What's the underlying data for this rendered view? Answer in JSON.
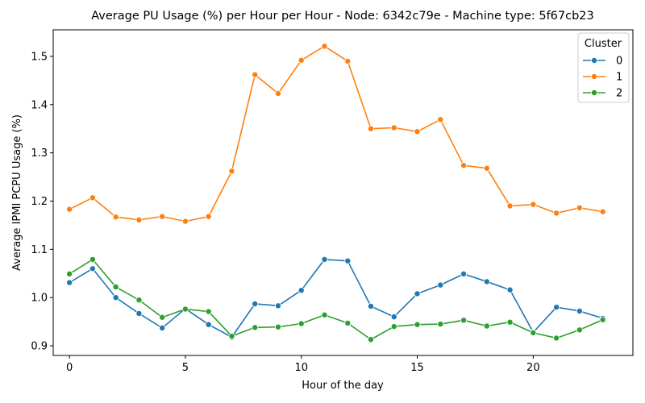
{
  "chart_data": {
    "type": "line",
    "title": "Average PU Usage (%) per Hour per Hour - Node: 6342c79e - Machine type: 5f67cb23",
    "xlabel": "Hour of the day",
    "ylabel": "Average IPMI PCPU Usage (%)",
    "x": [
      0,
      1,
      2,
      3,
      4,
      5,
      6,
      7,
      8,
      9,
      10,
      11,
      12,
      13,
      14,
      15,
      16,
      17,
      18,
      19,
      20,
      21,
      22,
      23
    ],
    "xlim": [
      -0.7,
      24.3
    ],
    "ylim": [
      0.88,
      1.555
    ],
    "xticks": [
      0,
      5,
      10,
      15,
      20
    ],
    "xtick_labels": [
      "0",
      "5",
      "10",
      "15",
      "20"
    ],
    "yticks": [
      0.9,
      1.0,
      1.1,
      1.2,
      1.3,
      1.4,
      1.5
    ],
    "ytick_labels": [
      "0.9",
      "1.0",
      "1.1",
      "1.2",
      "1.3",
      "1.4",
      "1.5"
    ],
    "grid": false,
    "legend": {
      "title": "Cluster",
      "placement": "top-right"
    },
    "series": [
      {
        "name": "0",
        "color": "#1f77b4",
        "values": [
          1.031,
          1.06,
          1.0,
          0.967,
          0.937,
          0.977,
          0.944,
          0.918,
          0.987,
          0.983,
          1.015,
          1.079,
          1.076,
          0.982,
          0.96,
          1.008,
          1.026,
          1.049,
          1.033,
          1.016,
          0.928,
          0.98,
          0.972,
          0.957
        ]
      },
      {
        "name": "1",
        "color": "#ff7f0e",
        "values": [
          1.183,
          1.207,
          1.167,
          1.161,
          1.168,
          1.158,
          1.168,
          1.262,
          1.462,
          1.423,
          1.492,
          1.521,
          1.49,
          1.35,
          1.352,
          1.344,
          1.369,
          1.274,
          1.268,
          1.19,
          1.193,
          1.175,
          1.186,
          1.178
        ]
      },
      {
        "name": "2",
        "color": "#2ca02c",
        "values": [
          1.049,
          1.079,
          1.022,
          0.995,
          0.959,
          0.976,
          0.971,
          0.92,
          0.938,
          0.939,
          0.946,
          0.964,
          0.947,
          0.913,
          0.94,
          0.944,
          0.945,
          0.953,
          0.941,
          0.949,
          0.927,
          0.916,
          0.933,
          0.954
        ]
      }
    ]
  }
}
